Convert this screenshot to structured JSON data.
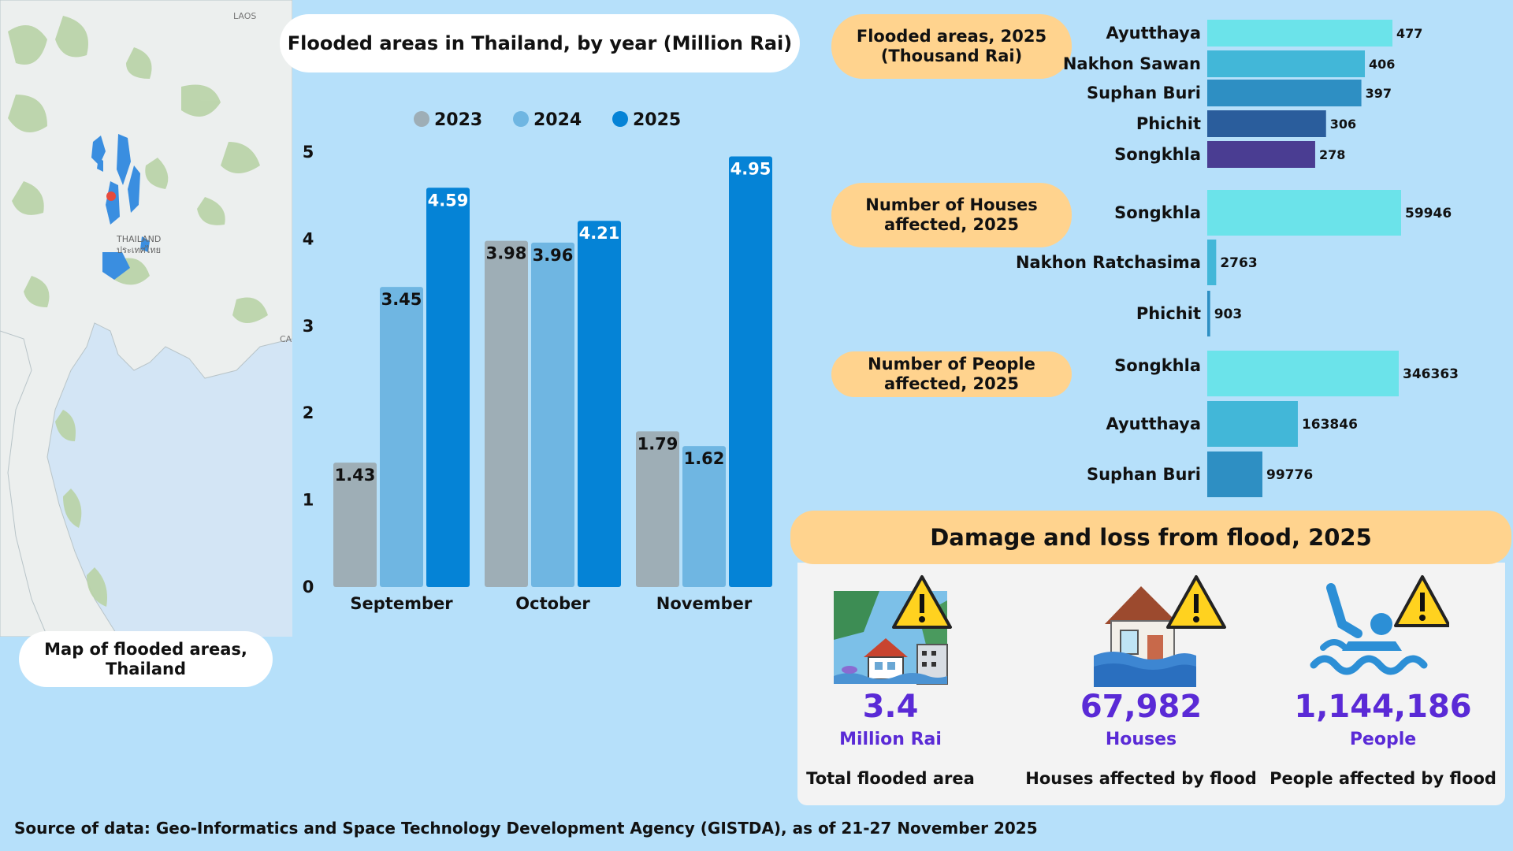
{
  "map": {
    "caption": "Map of flooded areas,\nThailand",
    "labels": {
      "laos": "LAOS",
      "thailand": "THAILAND",
      "thailand_thai": "ประเทศไทย",
      "cambodia_partial": "CA"
    }
  },
  "chart_data": [
    {
      "type": "bar",
      "title": "Flooded areas in Thailand, by year (Million Rai)",
      "categories": [
        "September",
        "October",
        "November"
      ],
      "series": [
        {
          "name": "2023",
          "values": [
            1.43,
            3.98,
            1.79
          ],
          "color": "#9eaeb6"
        },
        {
          "name": "2024",
          "values": [
            3.45,
            3.96,
            1.62
          ],
          "color": "#6fb6e2"
        },
        {
          "name": "2025",
          "values": [
            4.59,
            4.21,
            4.95
          ],
          "color": "#0583d6"
        }
      ],
      "ylim": [
        0,
        5
      ],
      "yticks": [
        0,
        1,
        2,
        3,
        4,
        5
      ],
      "legend": "top",
      "grid": false
    },
    {
      "type": "bar",
      "orientation": "horizontal",
      "title": "Flooded areas, 2025\n(Thousand Rai)",
      "categories": [
        "Ayutthaya",
        "Nakhon Sawan",
        "Suphan Buri",
        "Phichit",
        "Songkhla"
      ],
      "values": [
        477,
        406,
        397,
        306,
        278
      ]
    },
    {
      "type": "bar",
      "orientation": "horizontal",
      "title": "Number of Houses\naffected, 2025",
      "categories": [
        "Songkhla",
        "Nakhon Ratchasima",
        "Phichit"
      ],
      "values": [
        59946,
        2763,
        903
      ]
    },
    {
      "type": "bar",
      "orientation": "horizontal",
      "title": "Number of People\naffected, 2025",
      "categories": [
        "Songkhla",
        "Ayutthaya",
        "Suphan Buri"
      ],
      "values": [
        346363,
        163846,
        99776
      ]
    }
  ],
  "damage": {
    "title": "Damage and loss from flood, 2025",
    "stats": [
      {
        "value": "3.4",
        "unit": "Million Rai",
        "desc": "Total flooded area"
      },
      {
        "value": "67,982",
        "unit": "Houses",
        "desc": "Houses affected by flood"
      },
      {
        "value": "1,144,186",
        "unit": "People",
        "desc": "People affected by flood"
      }
    ]
  },
  "source": "Source of data: Geo-Informatics and Space Technology Development Agency (GISTDA), as of 21-27 November 2025",
  "colors": {
    "background": "#b6e0fa",
    "pill": "#ffd38e",
    "accent_number": "#5a2ad6",
    "rank_bars": [
      "#6be3ea",
      "#42b7d8",
      "#2e8fc3",
      "#2a5d9c",
      "#4a3d92"
    ]
  }
}
